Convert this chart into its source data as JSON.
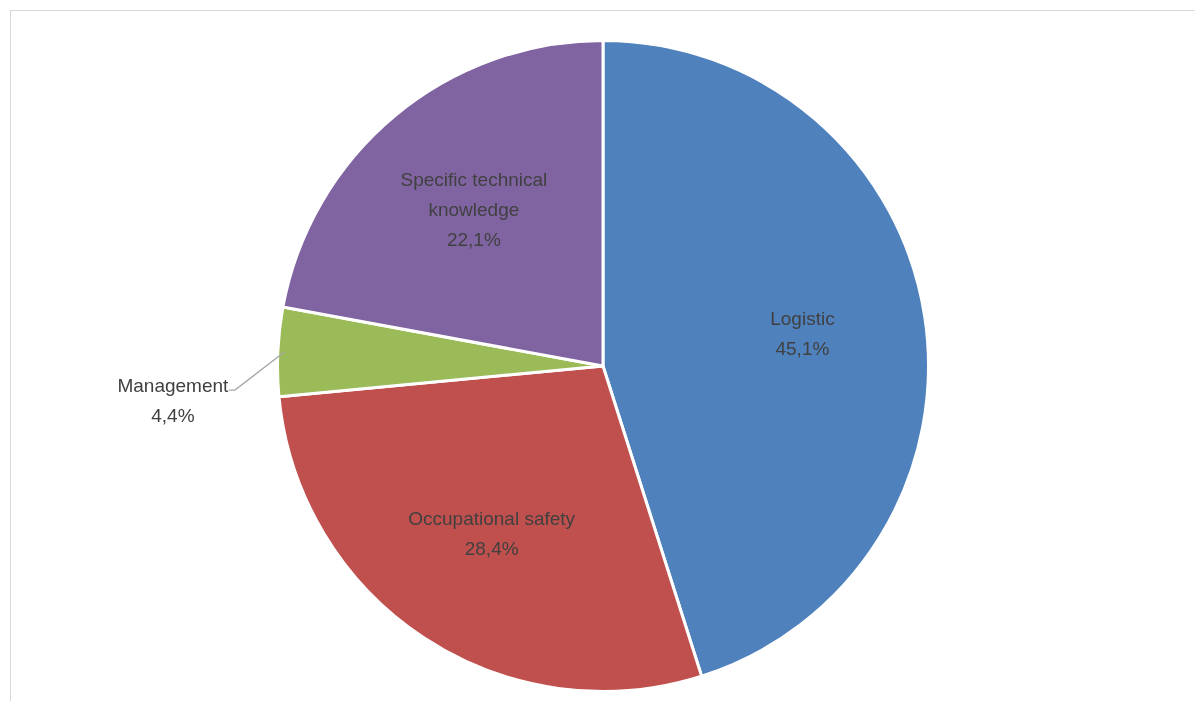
{
  "chart_data": {
    "type": "pie",
    "categories": [
      "Logistic",
      "Occupational safety",
      "Management",
      "Specific technical knowledge"
    ],
    "values": [
      45.1,
      28.4,
      4.4,
      22.1
    ],
    "colors": [
      "#4f81bd",
      "#c0504d",
      "#9bbb59",
      "#8064a2"
    ],
    "value_labels": [
      "45,1%",
      "28,4%",
      "4,4%",
      "22,1%"
    ]
  }
}
